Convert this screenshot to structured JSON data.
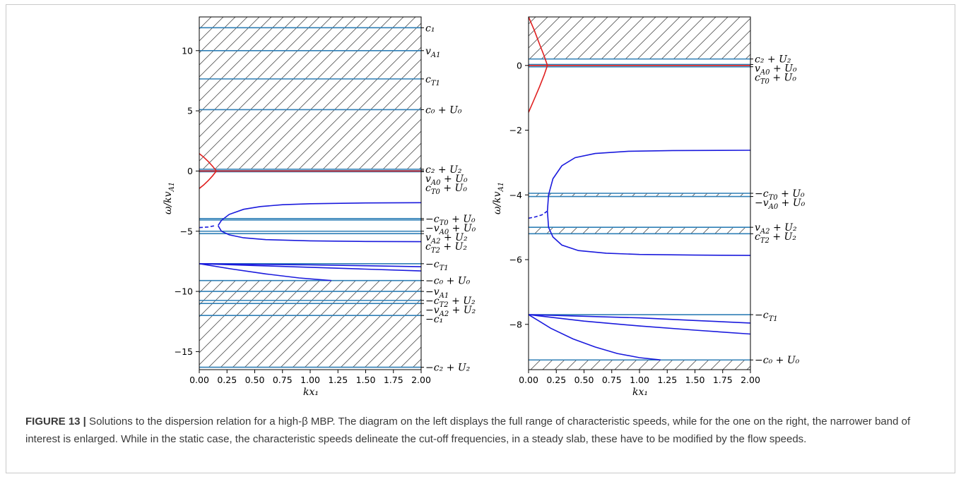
{
  "caption": {
    "figure_label": "FIGURE 13 |",
    "text": " Solutions to the dispersion relation for a high-β MBP. The diagram on the left displays the full range of characteristic speeds, while for the one on the right, the narrower band of interest is enlarged. While in the static case, the characteristic speeds delineate the cut-off frequencies, in a steady slab, these have to be modified by the flow speeds."
  },
  "chart_data": [
    {
      "type": "line",
      "panel": "left",
      "xlabel": "kx₁",
      "ylabel": "ω/kv_A1",
      "xlim": [
        0,
        2
      ],
      "ylim": [
        -16.5,
        12.8
      ],
      "xticks": [
        "0.00",
        "0.25",
        "0.50",
        "0.75",
        "1.00",
        "1.25",
        "1.50",
        "1.75",
        "2.00"
      ],
      "yticks": [
        10,
        5,
        0,
        -5,
        -10,
        -15
      ],
      "hatched_bands": [
        [
          0.13,
          12.8
        ],
        [
          -16.3,
          -9.1
        ]
      ],
      "horizontal_lines": [
        {
          "y": 11.9,
          "label": "c₁"
        },
        {
          "y": 10.0,
          "label": "v_A1"
        },
        {
          "y": 7.65,
          "label": "c_T1"
        },
        {
          "y": 5.1,
          "label": "c₀ + U₀"
        },
        {
          "y": 0.15,
          "label": "c₂ + U₂"
        },
        {
          "y": 0.03,
          "label": "v_A0 + U₀"
        },
        {
          "y": -0.06,
          "label": "c_T0 + U₀"
        },
        {
          "y": -3.95,
          "label": "−c_T0 + U₀"
        },
        {
          "y": -4.07,
          "label": "−v_A0 + U₀"
        },
        {
          "y": -5.0,
          "label": "v_A2 + U₂"
        },
        {
          "y": -5.2,
          "label": "c_T2 + U₂"
        },
        {
          "y": -7.7,
          "label": "−c_T1"
        },
        {
          "y": -9.1,
          "label": "−c₀ + U₀"
        },
        {
          "y": -10.0,
          "label": "−v_A1"
        },
        {
          "y": -10.75,
          "label": "−c_T2 + U₂"
        },
        {
          "y": -11.0,
          "label": "−v_A2 + U₂"
        },
        {
          "y": -12.0,
          "label": "−c₁"
        },
        {
          "y": -16.3,
          "label": "−c₂ + U₂"
        }
      ],
      "series": [
        {
          "color": "#e02020",
          "x": [
            0.0,
            0.04,
            0.08,
            0.12,
            0.155,
            0.12,
            0.08,
            0.04,
            0.0
          ],
          "y": [
            1.45,
            1.15,
            0.8,
            0.4,
            0.0,
            -0.4,
            -0.8,
            -1.15,
            -1.45
          ]
        },
        {
          "color": "#e02020",
          "x": [
            0.0,
            2.0
          ],
          "y": [
            0.0,
            0.0
          ]
        },
        {
          "color": "#1a1add",
          "x": [
            0.17,
            0.2,
            0.27,
            0.4,
            0.55,
            0.75,
            1.0,
            1.5,
            2.0
          ],
          "y": [
            -4.52,
            -4.1,
            -3.6,
            -3.18,
            -2.95,
            -2.8,
            -2.72,
            -2.65,
            -2.63
          ]
        },
        {
          "color": "#1a1add",
          "x": [
            0.17,
            0.2,
            0.27,
            0.4,
            0.6,
            1.0,
            1.5,
            2.0
          ],
          "y": [
            -4.55,
            -5.0,
            -5.3,
            -5.55,
            -5.7,
            -5.8,
            -5.85,
            -5.87
          ]
        },
        {
          "color": "#1a1add",
          "dashed": true,
          "x": [
            0.0,
            0.08,
            0.15
          ],
          "y": [
            -4.7,
            -4.65,
            -4.52
          ]
        },
        {
          "color": "#1a1add",
          "x": [
            0.0,
            0.5,
            1.0,
            1.5,
            2.0
          ],
          "y": [
            -7.7,
            -7.75,
            -7.8,
            -7.87,
            -7.95
          ]
        },
        {
          "color": "#1a1add",
          "x": [
            0.0,
            0.5,
            1.0,
            1.5,
            2.0
          ],
          "y": [
            -7.7,
            -7.85,
            -8.0,
            -8.15,
            -8.3
          ]
        },
        {
          "color": "#1a1add",
          "x": [
            0.0,
            0.3,
            0.6,
            0.9,
            1.19
          ],
          "y": [
            -7.7,
            -8.15,
            -8.55,
            -8.88,
            -9.1
          ]
        }
      ]
    },
    {
      "type": "line",
      "panel": "right",
      "xlabel": "kx₁",
      "ylabel": "ω/kv_A1",
      "xlim": [
        0,
        2
      ],
      "ylim": [
        -9.4,
        1.5
      ],
      "xticks": [
        "0.00",
        "0.25",
        "0.50",
        "0.75",
        "1.00",
        "1.25",
        "1.50",
        "1.75",
        "2.00"
      ],
      "yticks": [
        0,
        -2,
        -4,
        -6,
        -8
      ],
      "hatched_bands": [
        [
          0.2,
          1.5
        ],
        [
          -4.05,
          -3.95
        ],
        [
          -5.2,
          -5.0
        ],
        [
          -9.4,
          -9.1
        ]
      ],
      "horizontal_lines": [
        {
          "y": 0.2,
          "label": "c₂ + U₂"
        },
        {
          "y": 0.03,
          "label": "v_A0 + U₀"
        },
        {
          "y": -0.04,
          "label": "c_T0 + U₀"
        },
        {
          "y": -3.95,
          "label": "−c_T0 + U₀"
        },
        {
          "y": -4.05,
          "label": "−v_A0 + U₀"
        },
        {
          "y": -5.0,
          "label": "v_A2 + U₂"
        },
        {
          "y": -5.2,
          "label": "c_T2 + U₂"
        },
        {
          "y": -7.7,
          "label": "−c_T1"
        },
        {
          "y": -9.1,
          "label": "−c₀ + U₀"
        }
      ],
      "series": [
        {
          "color": "#e02020",
          "x": [
            0.0,
            0.05,
            0.1,
            0.14,
            0.17,
            0.14,
            0.1,
            0.05,
            0.0
          ],
          "y": [
            1.5,
            1.1,
            0.65,
            0.3,
            0.0,
            -0.3,
            -0.65,
            -1.05,
            -1.45
          ]
        },
        {
          "color": "#e02020",
          "x": [
            0.0,
            2.0
          ],
          "y": [
            0.0,
            0.0
          ]
        },
        {
          "color": "#1a1add",
          "x": [
            0.17,
            0.18,
            0.22,
            0.3,
            0.42,
            0.6,
            0.9,
            1.3,
            2.0
          ],
          "y": [
            -4.5,
            -4.0,
            -3.5,
            -3.1,
            -2.85,
            -2.72,
            -2.65,
            -2.63,
            -2.62
          ]
        },
        {
          "color": "#1a1add",
          "x": [
            0.17,
            0.18,
            0.22,
            0.3,
            0.45,
            0.7,
            1.0,
            1.5,
            2.0
          ],
          "y": [
            -4.5,
            -5.0,
            -5.3,
            -5.55,
            -5.72,
            -5.8,
            -5.84,
            -5.86,
            -5.87
          ]
        },
        {
          "color": "#1a1add",
          "dashed": true,
          "x": [
            0.0,
            0.06,
            0.12,
            0.17
          ],
          "y": [
            -4.72,
            -4.68,
            -4.62,
            -4.5
          ]
        },
        {
          "color": "#1a1add",
          "x": [
            0.0,
            0.5,
            1.0,
            1.5,
            2.0
          ],
          "y": [
            -7.7,
            -7.75,
            -7.8,
            -7.88,
            -7.96
          ]
        },
        {
          "color": "#1a1add",
          "x": [
            0.0,
            0.5,
            1.0,
            1.5,
            2.0
          ],
          "y": [
            -7.7,
            -7.9,
            -8.05,
            -8.18,
            -8.3
          ]
        },
        {
          "color": "#1a1add",
          "x": [
            0.0,
            0.2,
            0.4,
            0.6,
            0.8,
            1.0,
            1.19
          ],
          "y": [
            -7.7,
            -8.12,
            -8.45,
            -8.7,
            -8.9,
            -9.03,
            -9.1
          ]
        }
      ]
    }
  ]
}
